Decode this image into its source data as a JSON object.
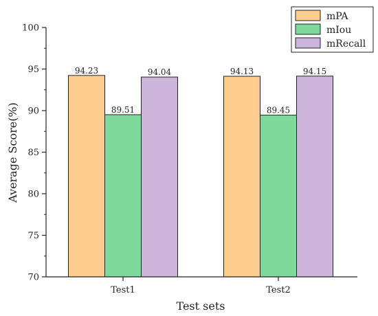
{
  "chart_data": {
    "type": "bar",
    "categories": [
      "Test1",
      "Test2"
    ],
    "series": [
      {
        "name": "mPA",
        "values": [
          94.23,
          94.13
        ],
        "labels": [
          "94.23",
          "94.13"
        ],
        "color": "#fdcc8f"
      },
      {
        "name": "mIou",
        "values": [
          89.51,
          89.45
        ],
        "labels": [
          "89.51",
          "89.45"
        ],
        "color": "#7ed99a"
      },
      {
        "name": "mRecall",
        "values": [
          94.04,
          94.15
        ],
        "labels": [
          "94.04",
          "94.15"
        ],
        "color": "#cdb4db"
      }
    ],
    "title": "",
    "xlabel": "Test sets",
    "ylabel": "Average Score(%)",
    "ylim": [
      70,
      100
    ],
    "yticks": [
      70,
      75,
      80,
      85,
      90,
      95,
      100
    ],
    "legend_position": "top-right",
    "grid": false
  }
}
